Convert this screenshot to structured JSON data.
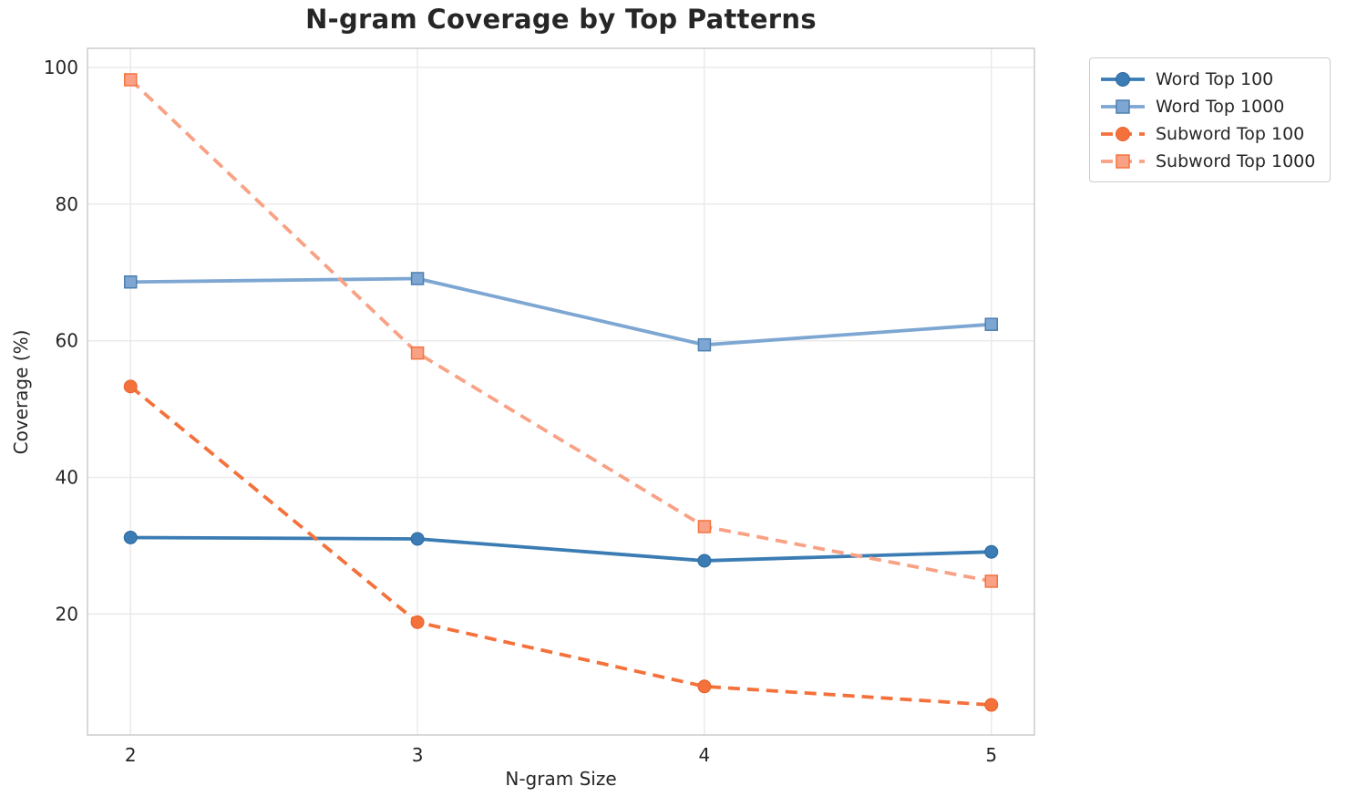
{
  "chart_data": {
    "type": "line",
    "title": "N-gram Coverage by Top Patterns",
    "xlabel": "N-gram Size",
    "ylabel": "Coverage (%)",
    "x": [
      2,
      3,
      4,
      5
    ],
    "xtick_labels": [
      "2",
      "3",
      "4",
      "5"
    ],
    "ytick_values": [
      20,
      40,
      60,
      80,
      100
    ],
    "ytick_labels": [
      "20",
      "40",
      "60",
      "80",
      "100"
    ],
    "xlim": [
      1.85,
      5.15
    ],
    "ylim": [
      2.3,
      102.8
    ],
    "grid": true,
    "legend_position": "outside-upper-right",
    "series": [
      {
        "name": "Word Top 100",
        "marker": "circle",
        "line_style": "solid",
        "color": "#3a7cb3",
        "marker_edge": "#2e6a9e",
        "values": [
          31.2,
          31.0,
          27.8,
          29.1
        ]
      },
      {
        "name": "Word Top 1000",
        "marker": "square",
        "line_style": "solid",
        "color": "#7da7d2",
        "marker_edge": "#4d7fb0",
        "values": [
          68.6,
          69.1,
          59.4,
          62.4
        ]
      },
      {
        "name": "Subword Top 100",
        "marker": "circle",
        "line_style": "dashed",
        "color": "#f4713b",
        "marker_edge": "#e8622c",
        "values": [
          53.3,
          18.8,
          9.4,
          6.7
        ]
      },
      {
        "name": "Subword Top 1000",
        "marker": "square",
        "line_style": "dashed",
        "color": "#f9a184",
        "marker_edge": "#f4733f",
        "values": [
          98.2,
          58.2,
          32.8,
          24.8
        ]
      }
    ],
    "colors": {
      "grid": "#e9e9e9",
      "spine": "#c9c9c9",
      "text": "#262626",
      "background": "#ffffff"
    }
  }
}
